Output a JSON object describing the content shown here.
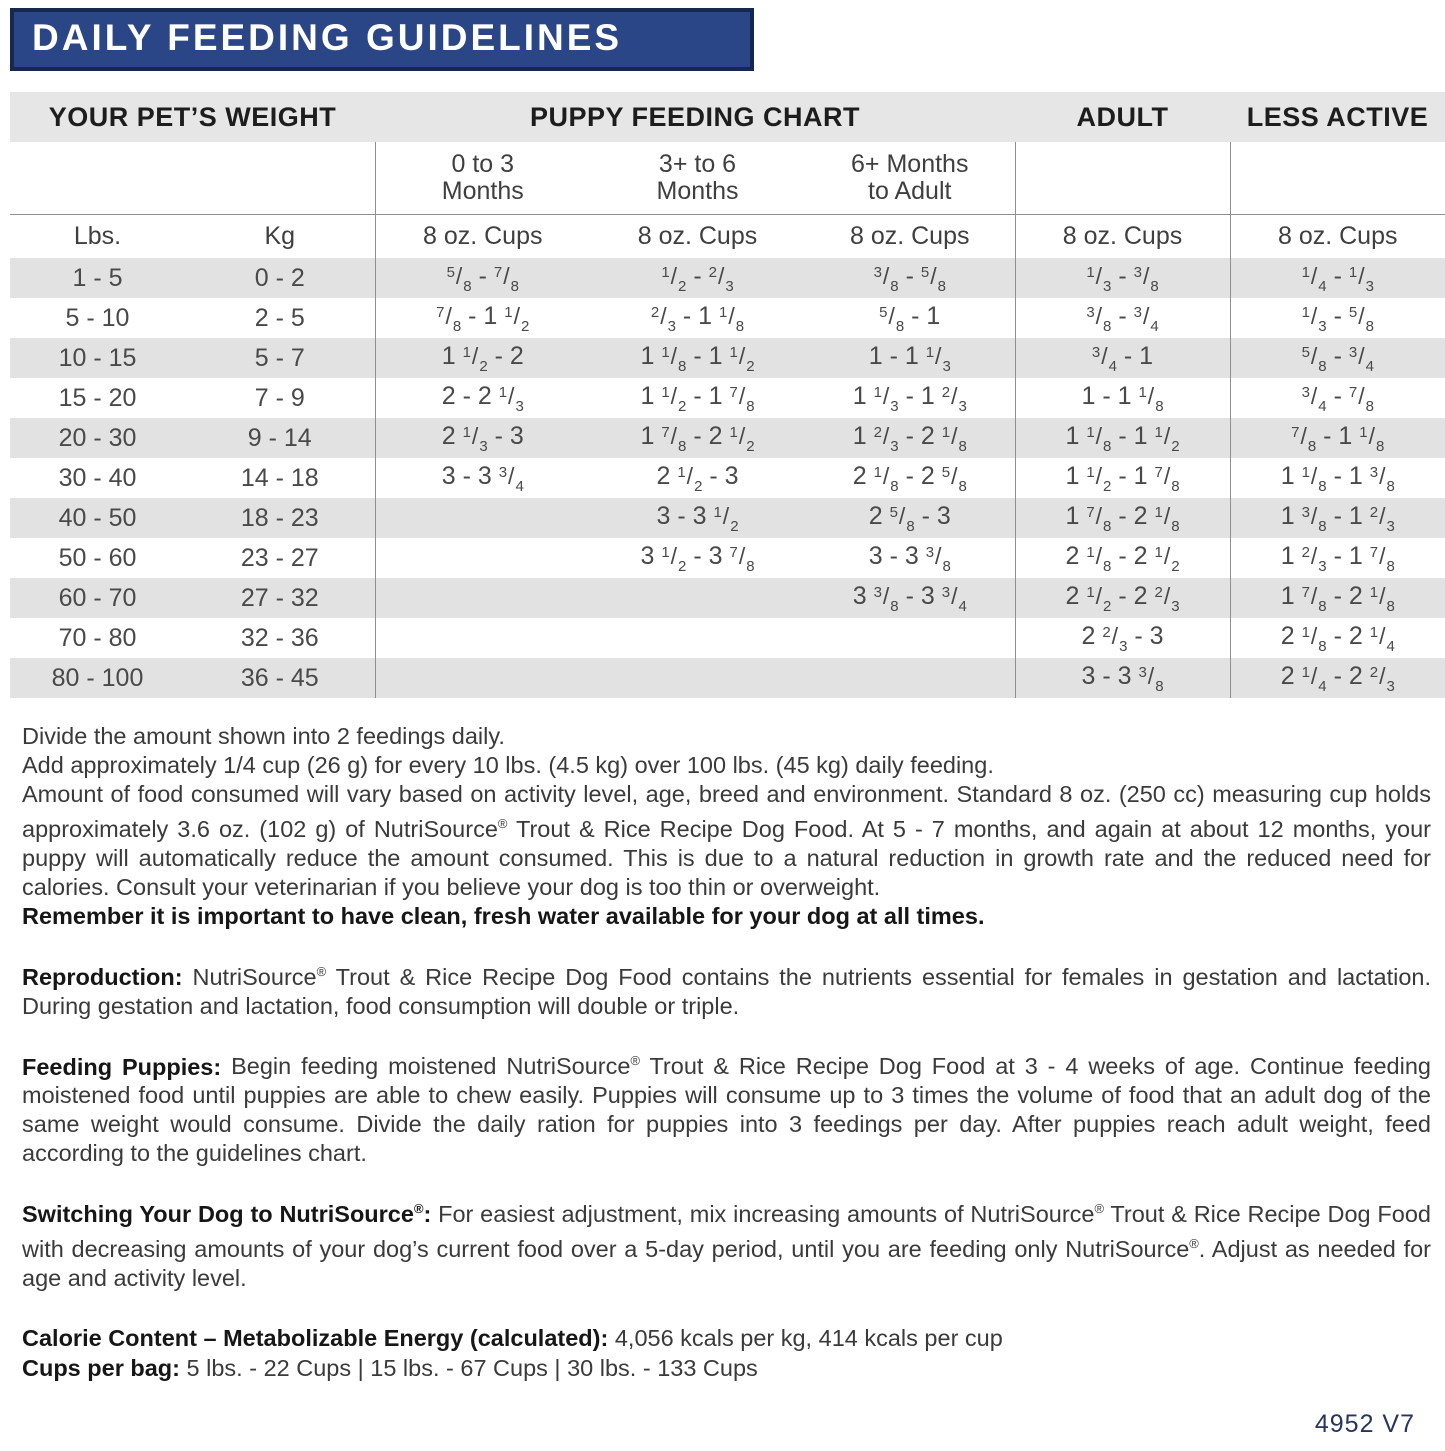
{
  "title": "DAILY FEEDING GUIDELINES",
  "table": {
    "group_headers": {
      "weight": "YOUR PET’S WEIGHT",
      "puppy": "PUPPY FEEDING CHART",
      "adult": "ADULT",
      "less_active": "LESS ACTIVE"
    },
    "sub_headers": {
      "age_0_3": "0 to 3\nMonths",
      "age_3_6": "3+ to 6\nMonths",
      "age_6_adult": "6+ Months\nto Adult"
    },
    "unit_row": [
      "Lbs.",
      "Kg",
      "8 oz. Cups",
      "8 oz. Cups",
      "8 oz. Cups",
      "8 oz. Cups",
      "8 oz. Cups"
    ],
    "rows": [
      [
        "1 - 5",
        "0 - 2",
        "5/8 - 7/8",
        "1/2 - 2/3",
        "3/8 - 5/8",
        "1/3 - 3/8",
        "1/4 - 1/3"
      ],
      [
        "5 - 10",
        "2 - 5",
        "7/8 - 1 1/2",
        "2/3 - 1 1/8",
        "5/8 - 1",
        "3/8 - 3/4",
        "1/3 - 5/8"
      ],
      [
        "10 - 15",
        "5 - 7",
        "1 1/2 - 2",
        "1 1/8 - 1 1/2",
        "1 - 1 1/3",
        "3/4 - 1",
        "5/8 - 3/4"
      ],
      [
        "15 - 20",
        "7 - 9",
        "2 - 2 1/3",
        "1 1/2 - 1 7/8",
        "1 1/3 - 1 2/3",
        "1 - 1 1/8",
        "3/4 - 7/8"
      ],
      [
        "20 - 30",
        "9 - 14",
        "2 1/3 - 3",
        "1 7/8 - 2 1/2",
        "1 2/3 - 2 1/8",
        "1 1/8 - 1 1/2",
        "7/8 - 1 1/8"
      ],
      [
        "30 - 40",
        "14 - 18",
        "3 - 3 3/4",
        "2 1/2 - 3",
        "2 1/8 - 2 5/8",
        "1 1/2 - 1 7/8",
        "1 1/8 - 1 3/8"
      ],
      [
        "40 - 50",
        "18 - 23",
        "",
        "3 - 3 1/2",
        "2 5/8 - 3",
        "1 7/8 - 2 1/8",
        "1 3/8 - 1 2/3"
      ],
      [
        "50 - 60",
        "23 - 27",
        "",
        "3 1/2 - 3 7/8",
        "3 - 3 3/8",
        "2 1/8 - 2 1/2",
        "1 2/3 - 1 7/8"
      ],
      [
        "60 - 70",
        "27 - 32",
        "",
        "",
        "3 3/8 - 3 3/4",
        "2 1/2 - 2 2/3",
        "1 7/8 - 2 1/8"
      ],
      [
        "70 - 80",
        "32 - 36",
        "",
        "",
        "",
        "2 2/3 - 3",
        "2 1/8 - 2 1/4"
      ],
      [
        "80 - 100",
        "36 - 45",
        "",
        "",
        "",
        "3 - 3 3/8",
        "2 1/4 - 2 2/3"
      ]
    ]
  },
  "notes": {
    "line1": "Divide the amount shown into 2 feedings daily.",
    "line2": "Add approximately 1/4 cup (26 g) for every 10 lbs. (4.5 kg) over 100 lbs. (45 kg) daily feeding.",
    "line3": "Amount of food consumed will vary based on activity level, age, breed and environment. Standard 8 oz. (250 cc) measuring cup holds approximately 3.6 oz. (102 g)  of NutriSource® Trout & Rice Recipe Dog Food. At 5 - 7 months, and again at about 12 months, your puppy will automatically reduce the amount consumed. This is due to a natural reduction in growth rate and the reduced need for calories. Consult your veterinarian if you believe your dog is too thin or overweight.",
    "bold_line": "Remember it is important to have clean, fresh water available for your dog at all times."
  },
  "sections": [
    {
      "label": "Reproduction:",
      "text": " NutriSource® Trout & Rice Recipe Dog Food contains the nutrients essential for females in gestation and lactation. During gestation and lactation, food consumption will double or triple."
    },
    {
      "label": "Feeding Puppies:",
      "text": " Begin feeding moistened NutriSource® Trout & Rice Recipe Dog Food at 3 - 4 weeks of age. Continue feeding moistened food until puppies are able to chew easily. Puppies will consume up to 3 times the volume of food that an adult dog of the same weight would consume. Divide the daily ration for puppies into 3 feedings per day. After puppies reach adult weight, feed according to the guidelines chart."
    },
    {
      "label": "Switching Your Dog to NutriSource®:",
      "text": " For easiest adjustment, mix increasing amounts of NutriSource® Trout & Rice Recipe Dog Food with decreasing amounts of your dog’s current food over a 5-day period, until you are feeding only NutriSource®. Adjust as needed for age and activity level."
    }
  ],
  "calorie": {
    "calorie_label": "Calorie Content – Metabolizable Energy (calculated):",
    "calorie_value": " 4,056 kcals per kg, 414 kcals per cup",
    "cups_label": "Cups per bag:",
    "cups_value": "  5 lbs. - 22 Cups  |  15 lbs. - 67 Cups  |  30 lbs. -  133 Cups"
  },
  "footer_code": "4952 V7"
}
